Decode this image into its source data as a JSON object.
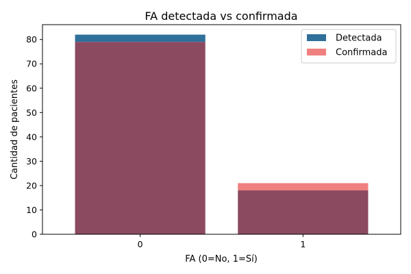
{
  "chart_data": {
    "type": "bar",
    "title": "FA detectada vs confirmada",
    "xlabel": "FA (0=No, 1=Sí)",
    "ylabel": "Cantidad de pacientes",
    "categories": [
      "0",
      "1"
    ],
    "series": [
      {
        "name": "Detectada",
        "values": [
          82,
          18
        ],
        "color": "#2f6f9a"
      },
      {
        "name": "Confirmada",
        "values": [
          79,
          21
        ],
        "color": "#f08080"
      }
    ],
    "overlap_color": "#8b4a60",
    "ylim": [
      0,
      86.1
    ],
    "yticks": [
      0,
      10,
      20,
      30,
      40,
      50,
      60,
      70,
      80
    ],
    "grid": false,
    "legend_position": "top-right"
  }
}
